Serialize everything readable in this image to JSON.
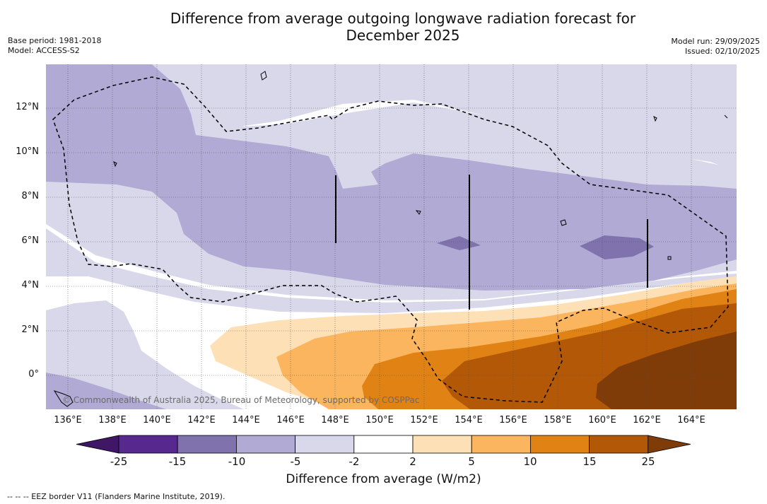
{
  "title": {
    "line1": "Difference from average outgoing longwave radiation forecast for",
    "line2": "December 2025"
  },
  "meta_left": {
    "base_period": "Base period: 1981-2018",
    "model": "Model: ACCESS-S2"
  },
  "meta_right": {
    "model_run": "Model run: 29/09/2025",
    "issued": "Issued: 02/10/2025"
  },
  "map": {
    "lon_labels": [
      "136°E",
      "138°E",
      "140°E",
      "142°E",
      "144°E",
      "146°E",
      "148°E",
      "150°E",
      "152°E",
      "154°E",
      "156°E",
      "158°E",
      "160°E",
      "162°E",
      "164°E"
    ],
    "lat_labels": [
      "12°N",
      "10°N",
      "8°N",
      "6°N",
      "4°N",
      "2°N",
      "0°"
    ],
    "copyright": "© Commonwealth of Australia 2025, Bureau of Meteorology, supported by COSPPac"
  },
  "colorbar": {
    "ticks": [
      "-25",
      "-15",
      "-10",
      "-5",
      "-2",
      "2",
      "5",
      "10",
      "15",
      "25"
    ],
    "colors": [
      "#3f1766",
      "#57298f",
      "#7f72ad",
      "#b0aad4",
      "#d8d8ea",
      "#ffffff",
      "#fee0b6",
      "#fbb55f",
      "#e08214",
      "#b35806",
      "#7f3b08"
    ],
    "label": "Difference from average (W/m2)"
  },
  "footnote": "--  --  -- EEZ border V11 (Flanders Marine Institute, 2019)."
}
